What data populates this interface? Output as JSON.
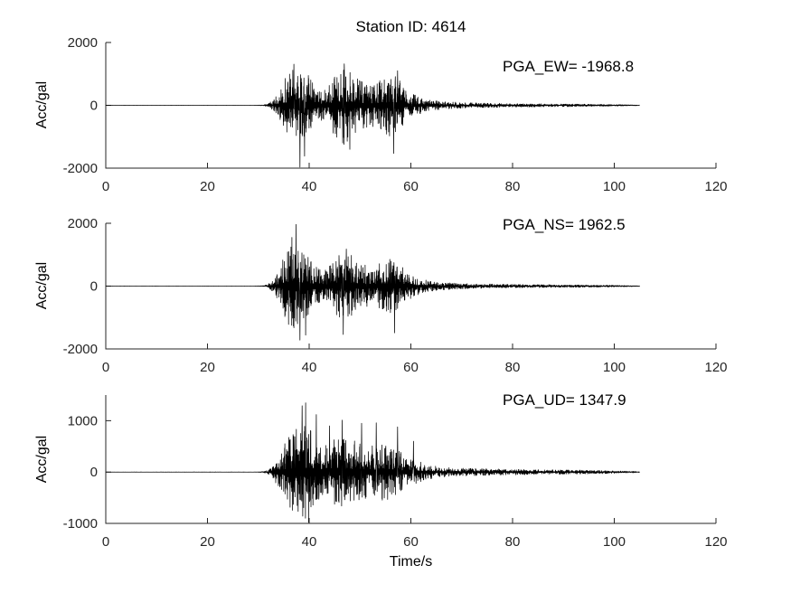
{
  "title": "Station ID: 4614",
  "xlabel": "Time/s",
  "axis_color": "#262626",
  "trace_color": "#000000",
  "chart_data": [
    {
      "type": "line",
      "name": "EW",
      "ylabel": "Acc/gal",
      "annotation": "PGA_EW= -1968.8",
      "pga": -1968.8,
      "xlim": [
        0,
        120
      ],
      "ylim": [
        -2000,
        2000
      ],
      "xticks": [
        0,
        20,
        40,
        60,
        80,
        100,
        120
      ],
      "yticks": [
        -2000,
        0,
        2000
      ],
      "signal": {
        "t_start": 0,
        "t_end": 105,
        "seed": 7,
        "envelope": [
          [
            0,
            2
          ],
          [
            29,
            2
          ],
          [
            30,
            5
          ],
          [
            31,
            15
          ],
          [
            32,
            60
          ],
          [
            33,
            180
          ],
          [
            34,
            420
          ],
          [
            35,
            800
          ],
          [
            36,
            1150
          ],
          [
            37,
            1300
          ],
          [
            38,
            1300
          ],
          [
            39,
            1150
          ],
          [
            40,
            950
          ],
          [
            41,
            650
          ],
          [
            42,
            520
          ],
          [
            43,
            500
          ],
          [
            44,
            650
          ],
          [
            45,
            1000
          ],
          [
            46,
            1200
          ],
          [
            47,
            1300
          ],
          [
            48,
            1150
          ],
          [
            49,
            950
          ],
          [
            50,
            820
          ],
          [
            51,
            720
          ],
          [
            52,
            660
          ],
          [
            53,
            700
          ],
          [
            54,
            800
          ],
          [
            55,
            950
          ],
          [
            56,
            1050
          ],
          [
            57,
            980
          ],
          [
            58,
            750
          ],
          [
            59,
            550
          ],
          [
            60,
            420
          ],
          [
            61,
            330
          ],
          [
            62,
            260
          ],
          [
            63,
            210
          ],
          [
            64,
            170
          ],
          [
            66,
            130
          ],
          [
            68,
            105
          ],
          [
            70,
            92
          ],
          [
            72,
            82
          ],
          [
            74,
            74
          ],
          [
            76,
            67
          ],
          [
            78,
            62
          ],
          [
            80,
            58
          ],
          [
            82,
            55
          ],
          [
            84,
            52
          ],
          [
            86,
            50
          ],
          [
            88,
            47
          ],
          [
            90,
            45
          ],
          [
            92,
            42
          ],
          [
            94,
            40
          ],
          [
            96,
            36
          ],
          [
            98,
            31
          ],
          [
            100,
            26
          ],
          [
            102,
            20
          ],
          [
            104,
            12
          ],
          [
            105,
            6
          ]
        ],
        "spikes": [
          [
            38.2,
            -1968.8
          ],
          [
            39.1,
            -1620
          ],
          [
            37.0,
            1310
          ],
          [
            46.9,
            1320
          ],
          [
            48.0,
            -1400
          ],
          [
            56.6,
            -1530
          ],
          [
            57.4,
            1100
          ]
        ]
      }
    },
    {
      "type": "line",
      "name": "NS",
      "ylabel": "Acc/gal",
      "annotation": "PGA_NS= 1962.5",
      "pga": 1962.5,
      "xlim": [
        0,
        120
      ],
      "ylim": [
        -2000,
        2000
      ],
      "xticks": [
        0,
        20,
        40,
        60,
        80,
        100,
        120
      ],
      "yticks": [
        -2000,
        0,
        2000
      ],
      "signal": {
        "t_start": 0,
        "t_end": 105,
        "seed": 13,
        "envelope": [
          [
            0,
            2
          ],
          [
            29,
            2
          ],
          [
            30,
            5
          ],
          [
            31,
            15
          ],
          [
            32,
            70
          ],
          [
            33,
            220
          ],
          [
            34,
            520
          ],
          [
            35,
            950
          ],
          [
            36,
            1300
          ],
          [
            37,
            1450
          ],
          [
            38,
            1400
          ],
          [
            39,
            1250
          ],
          [
            40,
            1000
          ],
          [
            41,
            700
          ],
          [
            42,
            560
          ],
          [
            43,
            520
          ],
          [
            44,
            640
          ],
          [
            45,
            900
          ],
          [
            46,
            1050
          ],
          [
            47,
            1120
          ],
          [
            48,
            1020
          ],
          [
            49,
            900
          ],
          [
            50,
            800
          ],
          [
            51,
            700
          ],
          [
            52,
            640
          ],
          [
            53,
            660
          ],
          [
            54,
            730
          ],
          [
            55,
            830
          ],
          [
            56,
            900
          ],
          [
            57,
            840
          ],
          [
            58,
            670
          ],
          [
            59,
            510
          ],
          [
            60,
            390
          ],
          [
            61,
            310
          ],
          [
            62,
            250
          ],
          [
            63,
            200
          ],
          [
            64,
            165
          ],
          [
            66,
            125
          ],
          [
            68,
            102
          ],
          [
            70,
            90
          ],
          [
            72,
            80
          ],
          [
            74,
            72
          ],
          [
            76,
            65
          ],
          [
            78,
            60
          ],
          [
            80,
            56
          ],
          [
            82,
            53
          ],
          [
            84,
            50
          ],
          [
            86,
            48
          ],
          [
            88,
            45
          ],
          [
            90,
            43
          ],
          [
            92,
            41
          ],
          [
            94,
            38
          ],
          [
            96,
            34
          ],
          [
            98,
            29
          ],
          [
            100,
            25
          ],
          [
            102,
            19
          ],
          [
            104,
            12
          ],
          [
            105,
            6
          ]
        ],
        "spikes": [
          [
            37.4,
            1962.5
          ],
          [
            38.2,
            -1720
          ],
          [
            36.6,
            1550
          ],
          [
            39.3,
            -1560
          ],
          [
            46.7,
            -1540
          ],
          [
            47.3,
            1180
          ],
          [
            56.8,
            -1490
          ]
        ]
      }
    },
    {
      "type": "line",
      "name": "UD",
      "ylabel": "Acc/gal",
      "annotation": "PGA_UD= 1347.9",
      "pga": 1347.9,
      "xlim": [
        0,
        120
      ],
      "ylim": [
        -1000,
        1500
      ],
      "xticks": [
        0,
        20,
        40,
        60,
        80,
        100,
        120
      ],
      "yticks": [
        -1000,
        0,
        1000
      ],
      "signal": {
        "t_start": 0,
        "t_end": 105,
        "seed": 21,
        "envelope": [
          [
            0,
            1.5
          ],
          [
            29,
            1.5
          ],
          [
            30,
            4
          ],
          [
            31,
            10
          ],
          [
            32,
            45
          ],
          [
            33,
            140
          ],
          [
            34,
            330
          ],
          [
            35,
            520
          ],
          [
            36,
            680
          ],
          [
            37,
            800
          ],
          [
            38,
            900
          ],
          [
            39,
            950
          ],
          [
            40,
            860
          ],
          [
            41,
            680
          ],
          [
            42,
            560
          ],
          [
            43,
            520
          ],
          [
            44,
            580
          ],
          [
            45,
            650
          ],
          [
            46,
            700
          ],
          [
            47,
            680
          ],
          [
            48,
            640
          ],
          [
            49,
            610
          ],
          [
            50,
            580
          ],
          [
            51,
            540
          ],
          [
            52,
            510
          ],
          [
            53,
            530
          ],
          [
            54,
            550
          ],
          [
            55,
            560
          ],
          [
            56,
            530
          ],
          [
            57,
            470
          ],
          [
            58,
            400
          ],
          [
            59,
            330
          ],
          [
            60,
            280
          ],
          [
            61,
            230
          ],
          [
            62,
            190
          ],
          [
            63,
            160
          ],
          [
            64,
            135
          ],
          [
            66,
            108
          ],
          [
            68,
            92
          ],
          [
            70,
            82
          ],
          [
            72,
            74
          ],
          [
            74,
            67
          ],
          [
            76,
            62
          ],
          [
            78,
            58
          ],
          [
            80,
            55
          ],
          [
            82,
            52
          ],
          [
            84,
            50
          ],
          [
            86,
            47
          ],
          [
            88,
            45
          ],
          [
            90,
            43
          ],
          [
            92,
            41
          ],
          [
            94,
            38
          ],
          [
            96,
            34
          ],
          [
            98,
            30
          ],
          [
            100,
            26
          ],
          [
            102,
            20
          ],
          [
            104,
            13
          ],
          [
            105,
            7
          ]
        ],
        "spikes": [
          [
            38.6,
            1290
          ],
          [
            39.3,
            1347.9
          ],
          [
            39.9,
            -980
          ],
          [
            41.4,
            1120
          ],
          [
            44.0,
            900
          ],
          [
            46.5,
            1010
          ],
          [
            50.3,
            950
          ],
          [
            53.2,
            960
          ],
          [
            57.4,
            880
          ],
          [
            60.5,
            600
          ]
        ]
      }
    }
  ]
}
